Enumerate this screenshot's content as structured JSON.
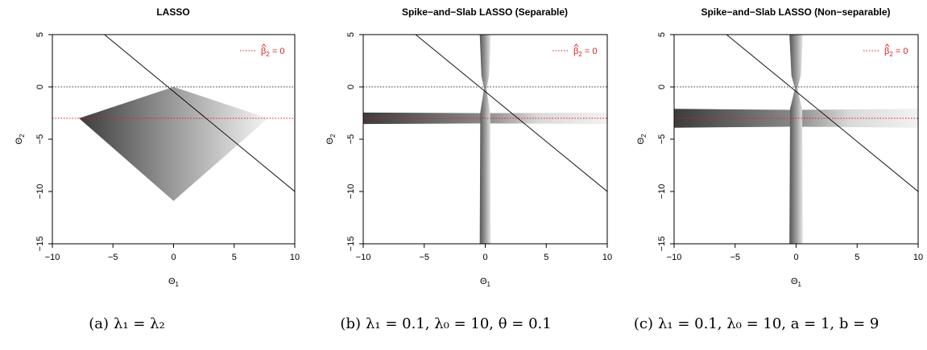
{
  "chart_data": [
    {
      "type": "area",
      "title": "LASSO",
      "xlabel": "Θ",
      "xlabel_sub": "1",
      "ylabel": "Θ",
      "ylabel_sub": "2",
      "xlim": [
        -10,
        10
      ],
      "ylim": [
        -15,
        5
      ],
      "xticks": [
        -10,
        -5,
        0,
        5,
        10
      ],
      "yticks": [
        -15,
        -10,
        -5,
        0,
        5
      ],
      "reference_lines": {
        "diagonal": [
          [
            -5.7,
            5
          ],
          [
            10,
            -10
          ]
        ],
        "zero_line_y": 0,
        "beta2_zero_y": -3
      },
      "region": {
        "shape": "polygon",
        "vertices": [
          [
            -7.8,
            -3
          ],
          [
            0,
            0
          ],
          [
            7.8,
            -3
          ],
          [
            0,
            -10.9
          ]
        ]
      },
      "legend": {
        "position": "top-right",
        "label_prefix": "β",
        "label_sub": "2",
        "label_suffix": " = 0",
        "color": "#e41a1c"
      },
      "caption": {
        "prefix": "(a)",
        "text": "λ₁ = λ₂"
      }
    },
    {
      "type": "area",
      "title": "Spike−and−Slab LASSO (Separable)",
      "xlabel": "Θ",
      "xlabel_sub": "1",
      "ylabel": "Θ",
      "ylabel_sub": "2",
      "xlim": [
        -10,
        10
      ],
      "ylim": [
        -15,
        5
      ],
      "xticks": [
        -10,
        -5,
        0,
        5,
        10
      ],
      "yticks": [
        -15,
        -10,
        -5,
        0,
        5
      ],
      "reference_lines": {
        "diagonal": [
          [
            -5.7,
            5
          ],
          [
            10,
            -10
          ]
        ],
        "zero_line_y": 0,
        "beta2_zero_y": -3
      },
      "region": {
        "shape": "cross",
        "horizontal_band_half_width": 0.55,
        "vertical_band_half_width": 0.45,
        "center": [
          0,
          -3
        ]
      },
      "legend": {
        "position": "top-right",
        "label_prefix": "β",
        "label_sub": "2",
        "label_suffix": " = 0",
        "color": "#e41a1c"
      },
      "caption": {
        "prefix": "(b)",
        "text": "λ₁ = 0.1, λ₀ = 10, θ = 0.1"
      }
    },
    {
      "type": "area",
      "title": "Spike−and−Slab LASSO (Non−separable)",
      "xlabel": "Θ",
      "xlabel_sub": "1",
      "ylabel": "Θ",
      "ylabel_sub": "2",
      "xlim": [
        -10,
        10
      ],
      "ylim": [
        -15,
        5
      ],
      "xticks": [
        -10,
        -5,
        0,
        5,
        10
      ],
      "yticks": [
        -15,
        -10,
        -5,
        0,
        5
      ],
      "reference_lines": {
        "diagonal": [
          [
            -5.7,
            5
          ],
          [
            10,
            -10
          ]
        ],
        "zero_line_y": 0,
        "beta2_zero_y": -3
      },
      "region": {
        "shape": "cross",
        "horizontal_band_half_width": 0.9,
        "vertical_band_half_width": 0.55,
        "center": [
          0,
          -3
        ]
      },
      "legend": {
        "position": "top-right",
        "label_prefix": "β",
        "label_sub": "2",
        "label_suffix": " = 0",
        "color": "#e41a1c"
      },
      "caption": {
        "prefix": "(c)",
        "text": "λ₁ = 0.1, λ₀ = 10, a = 1, b = 9"
      }
    }
  ],
  "colors": {
    "reference_line": "#000000",
    "dotted_zero": "#333333",
    "beta2_zero": "#e41a1c",
    "region_dark": "#2e2e2e",
    "region_light": "#ffffff"
  }
}
